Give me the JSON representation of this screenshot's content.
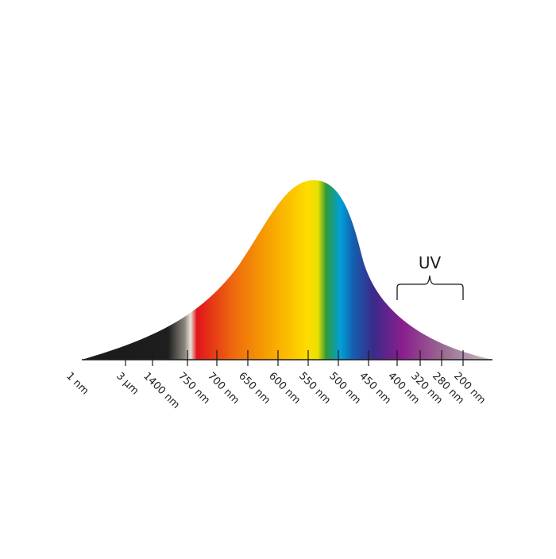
{
  "ticks": [
    "1 nm",
    "3 µm",
    "1400 nm",
    "750 nm",
    "700 nm",
    "650 nm",
    "600 nm",
    "550 nm",
    "500 nm",
    "450 nm",
    "400 nm",
    "320 nm",
    "280 nm",
    "200 nm"
  ],
  "uv_label": "UV"
}
